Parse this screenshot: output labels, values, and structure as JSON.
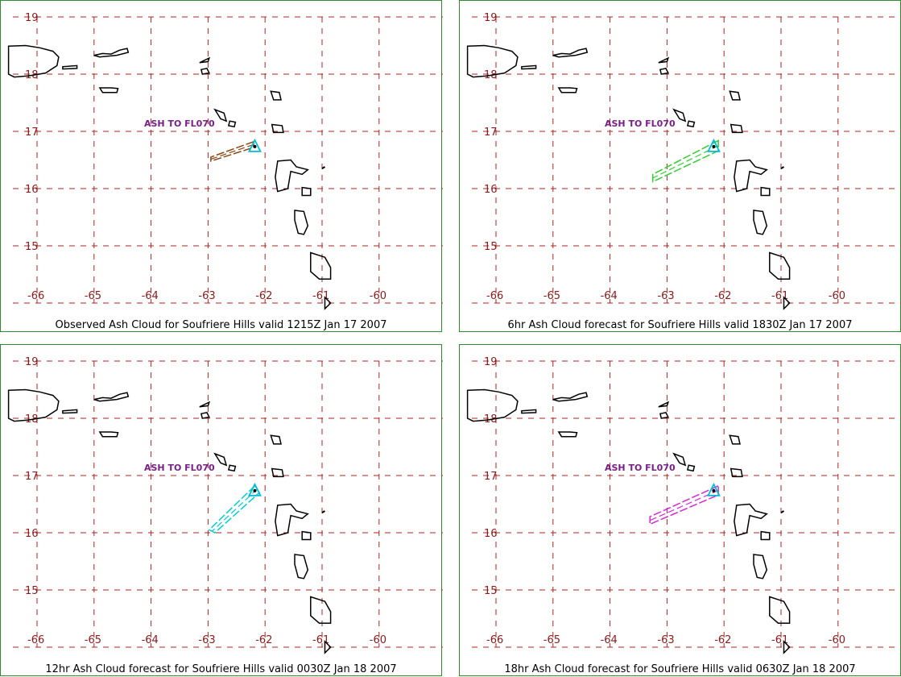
{
  "map": {
    "lon_labels": [
      "-66",
      "-65",
      "-64",
      "-63",
      "-62",
      "-61",
      "-60"
    ],
    "lat_labels": [
      "19",
      "18",
      "17",
      "16",
      "15"
    ],
    "grid_color": "#b22222",
    "coast_color": "#000000",
    "volcano_marker_color": "#00bcd4",
    "volcano": {
      "lon": -62.18,
      "lat": 16.72
    }
  },
  "panels": [
    {
      "caption": "Observed Ash Cloud for Soufriere  Hills valid 1215Z Jan 17 2007",
      "ash_label": "ASH TO FL070",
      "cloud_color": "#8b4513",
      "cloud_polygon": [
        [
          -62.2,
          16.82
        ],
        [
          -62.95,
          16.55
        ],
        [
          -62.95,
          16.48
        ],
        [
          -62.2,
          16.72
        ]
      ]
    },
    {
      "caption": "6hr Ash Cloud forecast for Soufriere  Hills valid 1830Z Jan 17 2007",
      "ash_label": "ASH TO FL070",
      "cloud_color": "#32cd32",
      "cloud_polygon": [
        [
          -62.1,
          16.84
        ],
        [
          -63.25,
          16.25
        ],
        [
          -63.25,
          16.12
        ],
        [
          -62.1,
          16.66
        ]
      ]
    },
    {
      "caption": "12hr Ash Cloud forecast for Soufriere  Hills valid 0030Z Jan 18 2007",
      "ash_label": "ASH TO FL070",
      "cloud_color": "#00ced1",
      "cloud_polygon": [
        [
          -62.18,
          16.82
        ],
        [
          -62.98,
          16.05
        ],
        [
          -62.88,
          16.0
        ],
        [
          -62.1,
          16.7
        ]
      ]
    },
    {
      "caption": "18hr Ash Cloud forecast for Soufriere  Hills valid 0630Z Jan 18 2007",
      "ash_label": "ASH TO FL070",
      "cloud_color": "#d428d4",
      "cloud_polygon": [
        [
          -62.1,
          16.82
        ],
        [
          -63.3,
          16.28
        ],
        [
          -63.3,
          16.15
        ],
        [
          -62.1,
          16.66
        ]
      ]
    }
  ]
}
